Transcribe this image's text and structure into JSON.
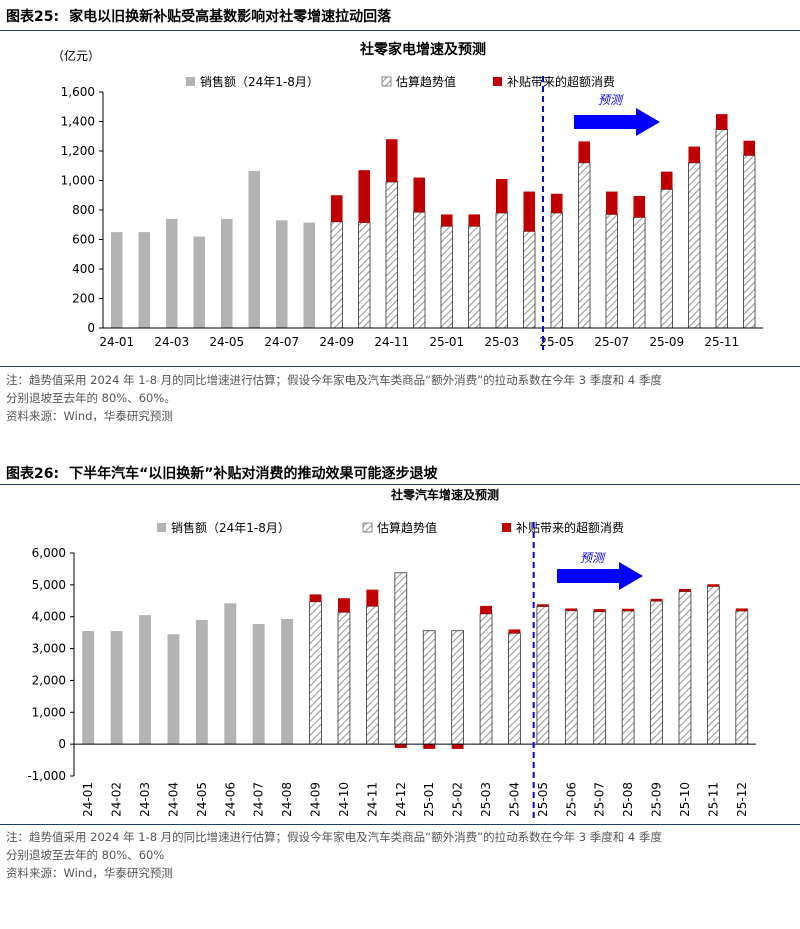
{
  "colors": {
    "sales": "#b3b3b3",
    "subsidy": "#c00000",
    "hatch": "#9a9a9a",
    "forecast": "#0000ff",
    "rule": "#1f3b6e"
  },
  "fig25": {
    "label": "图表25:",
    "title": "家电以旧换新补贴受高基数影响对社零增速拉动回落",
    "note1": "注：趋势值采用 2024 年 1-8 月的同比增速进行估算；假设今年家电及汽车类商品“额外消费”的拉动系数在今年 3 季度和 4 季度",
    "note2": "分别退坡至去年的 80%、60%。",
    "source": "资料来源：Wind，华泰研究预测"
  },
  "fig26": {
    "label": "图表26:",
    "title": "下半年汽车“以旧换新”补贴对消费的推动效果可能逐步退坡",
    "note1": "注：趋势值采用 2024 年 1-8 月的同比增速进行估算；假设今年家电及汽车类商品“额外消费”的拉动系数在今年 3 季度和 4 季度",
    "note2": "分别退坡至去年的 80%、60%",
    "source": "资料来源：Wind，华泰研究预测"
  },
  "chart_data": [
    {
      "type": "bar",
      "stacked": true,
      "title": "社零家电增速及预测",
      "ylabel": "（亿元）",
      "ylim": [
        0,
        1600
      ],
      "yticks": [
        0,
        200,
        400,
        600,
        800,
        1000,
        1200,
        1400,
        1600
      ],
      "ytick_labels": [
        "0",
        "200",
        "400",
        "600",
        "800",
        "1,000",
        "1,200",
        "1,400",
        "1,600"
      ],
      "categories": [
        "24-01",
        "24-02",
        "24-03",
        "24-04",
        "24-05",
        "24-06",
        "24-07",
        "24-08",
        "24-09",
        "24-10",
        "24-11",
        "24-12",
        "25-01",
        "25-02",
        "25-03",
        "25-04",
        "25-05",
        "25-06",
        "25-07",
        "25-08",
        "25-09",
        "25-10",
        "25-11",
        "25-12"
      ],
      "xtick_labels": [
        "24-01",
        "24-03",
        "24-05",
        "24-07",
        "24-09",
        "24-11",
        "25-01",
        "25-03",
        "25-05",
        "25-07",
        "25-09",
        "25-11"
      ],
      "series": [
        {
          "name": "销售额（24年1-8月）",
          "style": "solid",
          "values": [
            650,
            650,
            740,
            620,
            740,
            1065,
            730,
            715,
            null,
            null,
            null,
            null,
            null,
            null,
            null,
            null,
            null,
            null,
            null,
            null,
            null,
            null,
            null,
            null
          ]
        },
        {
          "name": "估算趋势值",
          "style": "hatch",
          "values": [
            null,
            null,
            null,
            null,
            null,
            null,
            null,
            null,
            720,
            715,
            990,
            785,
            690,
            690,
            780,
            655,
            780,
            1120,
            770,
            750,
            940,
            1120,
            1345,
            1170
          ]
        },
        {
          "name": "补贴带来的超额消费",
          "style": "subsidy",
          "values": [
            null,
            null,
            null,
            null,
            null,
            null,
            null,
            null,
            180,
            355,
            290,
            235,
            80,
            80,
            230,
            270,
            130,
            145,
            155,
            145,
            120,
            110,
            105,
            100
          ]
        }
      ],
      "forecast_after": "25-04",
      "annotation": "预测",
      "legend": "top"
    },
    {
      "type": "bar",
      "stacked": true,
      "title": "社零汽车增速及预测",
      "ylabel": "",
      "ylim": [
        -1000,
        6000
      ],
      "yticks": [
        -1000,
        0,
        1000,
        2000,
        3000,
        4000,
        5000,
        6000
      ],
      "ytick_labels": [
        "-1,000",
        "0",
        "1,000",
        "2,000",
        "3,000",
        "4,000",
        "5,000",
        "6,000"
      ],
      "categories": [
        "24-01",
        "24-02",
        "24-03",
        "24-04",
        "24-05",
        "24-06",
        "24-07",
        "24-08",
        "24-09",
        "24-10",
        "24-11",
        "24-12",
        "25-01",
        "25-02",
        "25-03",
        "25-04",
        "25-05",
        "25-06",
        "25-07",
        "25-08",
        "25-09",
        "25-10",
        "25-11",
        "25-12"
      ],
      "xtick_labels": [
        "24-01",
        "24-02",
        "24-03",
        "24-04",
        "24-05",
        "24-06",
        "24-07",
        "24-08",
        "24-09",
        "24-10",
        "24-11",
        "24-12",
        "25-01",
        "25-02",
        "25-03",
        "25-04",
        "25-05",
        "25-06",
        "25-07",
        "25-08",
        "25-09",
        "25-10",
        "25-11",
        "25-12"
      ],
      "series": [
        {
          "name": "销售额（24年1-8月）",
          "style": "solid",
          "values": [
            3550,
            3550,
            4050,
            3450,
            3900,
            4420,
            3770,
            3930,
            null,
            null,
            null,
            null,
            null,
            null,
            null,
            null,
            null,
            null,
            null,
            null,
            null,
            null,
            null,
            null
          ]
        },
        {
          "name": "估算趋势值",
          "style": "hatch",
          "values": [
            null,
            null,
            null,
            null,
            null,
            null,
            null,
            null,
            4470,
            4140,
            4330,
            5380,
            3560,
            3560,
            4090,
            3480,
            4320,
            4190,
            4160,
            4180,
            4490,
            4790,
            4950,
            4180
          ]
        },
        {
          "name": "补贴带来的超额消费",
          "style": "subsidy",
          "values": [
            null,
            null,
            null,
            null,
            null,
            null,
            null,
            null,
            230,
            440,
            520,
            -120,
            -150,
            -150,
            250,
            120,
            70,
            70,
            80,
            70,
            70,
            80,
            70,
            80
          ]
        }
      ],
      "forecast_after": "25-04",
      "annotation": "预测",
      "legend": "top"
    }
  ]
}
